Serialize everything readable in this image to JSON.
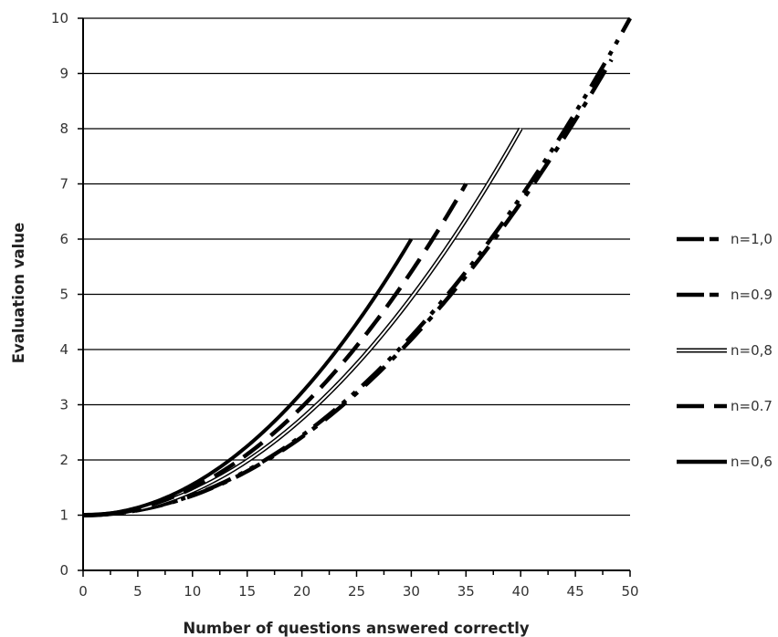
{
  "chart_data": {
    "type": "line",
    "title": "",
    "xlabel": "Number of questions answered correctly",
    "ylabel": "Evaluation value",
    "xlim": [
      0,
      50
    ],
    "ylim": [
      0,
      10
    ],
    "x_ticks": [
      0,
      5,
      10,
      15,
      20,
      25,
      30,
      35,
      40,
      45,
      50
    ],
    "y_ticks": [
      0,
      1,
      2,
      3,
      4,
      5,
      6,
      7,
      8,
      9,
      10
    ],
    "grid": "horizontal",
    "legend_position": "right",
    "series": [
      {
        "name": "n=1,0",
        "style": "dash-dot-dot",
        "x": [
          0,
          50
        ],
        "y": [
          1,
          10
        ],
        "curve": "quadratic"
      },
      {
        "name": "n=0.9",
        "style": "dash-dot",
        "x": [
          0,
          45,
          48.3
        ],
        "y": [
          1,
          8.29,
          9.25
        ],
        "curve": "quadratic"
      },
      {
        "name": "n=0,8",
        "style": "double",
        "x": [
          0,
          40
        ],
        "y": [
          1,
          8
        ],
        "curve": "quadratic"
      },
      {
        "name": "n=0.7",
        "style": "long-dash",
        "x": [
          0,
          35
        ],
        "y": [
          1,
          7
        ],
        "curve": "quadratic"
      },
      {
        "name": "n=0,6",
        "style": "solid",
        "x": [
          0,
          30
        ],
        "y": [
          1,
          6
        ],
        "curve": "quadratic"
      }
    ]
  }
}
